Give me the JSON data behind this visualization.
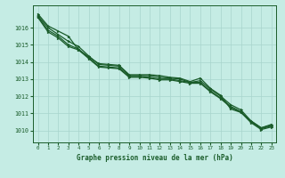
{
  "title": "Graphe pression niveau de la mer (hPa)",
  "background_color": "#c5ece4",
  "plot_bg_color": "#c5ece4",
  "grid_color": "#a8d5cc",
  "line_color": "#1a5c2a",
  "xlabel_bg": "#2a6e3a",
  "xlabel_fg": "#c5ece4",
  "xlim": [
    -0.5,
    23.5
  ],
  "ylim": [
    1009.3,
    1017.3
  ],
  "yticks": [
    1010,
    1011,
    1012,
    1013,
    1014,
    1015,
    1016
  ],
  "xtick_labels": [
    "0",
    "1",
    "2",
    "3",
    "4",
    "5",
    "6",
    "7",
    "8",
    "9",
    "10",
    "11",
    "12",
    "13",
    "14",
    "15",
    "16",
    "17",
    "18",
    "19",
    "20",
    "21",
    "22",
    "23"
  ],
  "series": [
    [
      1016.8,
      1016.1,
      1015.8,
      1015.5,
      1014.7,
      1014.3,
      1013.9,
      1013.85,
      1013.8,
      1013.25,
      1013.25,
      1013.25,
      1013.2,
      1013.1,
      1013.05,
      1012.85,
      1013.05,
      1012.45,
      1012.05,
      1011.25,
      1011.05,
      1010.55,
      1010.15,
      1010.3
    ],
    [
      1016.7,
      1016.0,
      1015.6,
      1015.2,
      1014.9,
      1014.35,
      1013.85,
      1013.8,
      1013.75,
      1013.2,
      1013.2,
      1013.2,
      1013.1,
      1013.05,
      1013.0,
      1012.8,
      1012.9,
      1012.4,
      1012.0,
      1011.5,
      1011.2,
      1010.55,
      1010.15,
      1010.35
    ],
    [
      1016.65,
      1015.85,
      1015.5,
      1015.0,
      1014.75,
      1014.25,
      1013.75,
      1013.7,
      1013.65,
      1013.15,
      1013.15,
      1013.1,
      1013.0,
      1013.0,
      1012.9,
      1012.8,
      1012.8,
      1012.3,
      1011.9,
      1011.4,
      1011.1,
      1010.5,
      1010.1,
      1010.25
    ],
    [
      1016.6,
      1015.75,
      1015.4,
      1014.9,
      1014.7,
      1014.2,
      1013.7,
      1013.65,
      1013.6,
      1013.1,
      1013.1,
      1013.05,
      1012.95,
      1012.95,
      1012.85,
      1012.75,
      1012.75,
      1012.25,
      1011.85,
      1011.35,
      1011.05,
      1010.45,
      1010.05,
      1010.2
    ]
  ]
}
